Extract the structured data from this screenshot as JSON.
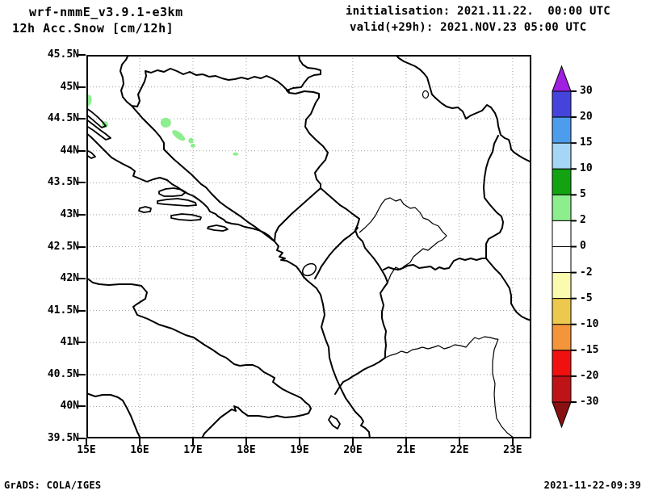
{
  "header": {
    "model_title": "wrf-nmmE_v3.9.1-e3km",
    "product_title": "12h Acc.Snow [cm/12h]",
    "init_line": "initialisation: 2021.11.22.  00:00 UTC",
    "valid_line": "valid(+29h): 2021.NOV.23 05:00 UTC"
  },
  "footer": {
    "credit": "GrADS: COLA/IGES",
    "generated": "2021-11-22-09:39"
  },
  "chart_data": {
    "type": "map",
    "title": "12h Accumulated Snow [cm/12h] - wrf-nmmE_v3.9.1-e3km",
    "projection": "latlon",
    "lon_range": [
      15,
      23.35
    ],
    "lat_range": [
      39.5,
      45.5
    ],
    "grid_style": "dotted",
    "grid_color": "#9e9e9e",
    "x_ticks": [
      {
        "v": 15,
        "label": "15E"
      },
      {
        "v": 16,
        "label": "16E"
      },
      {
        "v": 17,
        "label": "17E"
      },
      {
        "v": 18,
        "label": "18E"
      },
      {
        "v": 19,
        "label": "19E"
      },
      {
        "v": 20,
        "label": "20E"
      },
      {
        "v": 21,
        "label": "21E"
      },
      {
        "v": 22,
        "label": "22E"
      },
      {
        "v": 23,
        "label": "23E"
      }
    ],
    "y_ticks": [
      {
        "v": 45.5,
        "label": "45.5N"
      },
      {
        "v": 45,
        "label": "45N"
      },
      {
        "v": 44.5,
        "label": "44.5N"
      },
      {
        "v": 44,
        "label": "44N"
      },
      {
        "v": 43.5,
        "label": "43.5N"
      },
      {
        "v": 43,
        "label": "43N"
      },
      {
        "v": 42.5,
        "label": "42.5N"
      },
      {
        "v": 42,
        "label": "42N"
      },
      {
        "v": 41.5,
        "label": "41.5N"
      },
      {
        "v": 41,
        "label": "41N"
      },
      {
        "v": 40.5,
        "label": "40.5N"
      },
      {
        "v": 40,
        "label": "40N"
      },
      {
        "v": 39.5,
        "label": "39.5N"
      }
    ],
    "colorbar": {
      "units": "cm/12h",
      "boundary_labels": [
        "30",
        "20",
        "15",
        "10",
        "5",
        "2",
        "0",
        "-2",
        "-5",
        "-10",
        "-15",
        "-20",
        "-30"
      ],
      "segments_top_to_bottom": [
        {
          "range": "> 30",
          "color": "#A020E0",
          "shape": "triangle-up"
        },
        {
          "range": "20 to 30",
          "color": "#4444DC"
        },
        {
          "range": "15 to 20",
          "color": "#4D9DEC"
        },
        {
          "range": "10 to 15",
          "color": "#A6D6F6"
        },
        {
          "range": "5 to 10",
          "color": "#12A212"
        },
        {
          "range": "2 to 5",
          "color": "#8DEE8D"
        },
        {
          "range": "0 to 2",
          "color": "#FFFFFF"
        },
        {
          "range": "-2 to 0",
          "color": "#FFFFFF"
        },
        {
          "range": "-5 to -2",
          "color": "#FBFBB0"
        },
        {
          "range": "-10 to -5",
          "color": "#EDC84E"
        },
        {
          "range": "-15 to -10",
          "color": "#F4953C"
        },
        {
          "range": "-20 to -15",
          "color": "#F01010"
        },
        {
          "range": "-30 to -20",
          "color": "#BE1417"
        },
        {
          "range": "< -30",
          "color": "#871111",
          "shape": "triangle-down"
        }
      ]
    },
    "snow_color": "#8DEE8D",
    "snow_patches_cm": [
      {
        "lon": 15.02,
        "lat": 44.78,
        "value_range": "2-5",
        "w": 10,
        "h": 16,
        "rot": 15
      },
      {
        "lon": 15.35,
        "lat": 44.41,
        "value_range": "2-5",
        "w": 8,
        "h": 8,
        "rot": 0
      },
      {
        "lon": 16.49,
        "lat": 44.44,
        "value_range": "2-5",
        "w": 13,
        "h": 12,
        "rot": 0
      },
      {
        "lon": 16.73,
        "lat": 44.24,
        "value_range": "2-5",
        "w": 19,
        "h": 8,
        "rot": 38
      },
      {
        "lon": 16.96,
        "lat": 44.16,
        "value_range": "2-5",
        "w": 6,
        "h": 7,
        "rot": 0
      },
      {
        "lon": 17.0,
        "lat": 44.08,
        "value_range": "2-5",
        "w": 6,
        "h": 5,
        "rot": 0
      },
      {
        "lon": 17.8,
        "lat": 43.95,
        "value_range": "2-5",
        "w": 7,
        "h": 4,
        "rot": 0
      }
    ]
  }
}
